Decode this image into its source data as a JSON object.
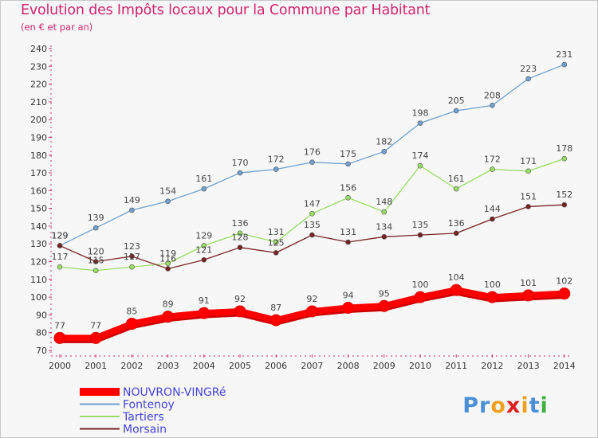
{
  "chart_data": {
    "type": "line",
    "title": "Evolution des Impôts locaux pour la Commune par Habitant",
    "subtitle": "(en € et par an)",
    "xlabel": "",
    "ylabel": "",
    "x": [
      "2000",
      "2001",
      "2002",
      "2003",
      "2004",
      "2005",
      "2006",
      "2007",
      "2008",
      "2009",
      "2010",
      "2011",
      "2012",
      "2013",
      "2014"
    ],
    "ylim": [
      70,
      240
    ],
    "yticks": [
      70,
      80,
      90,
      100,
      110,
      120,
      130,
      140,
      150,
      160,
      170,
      180,
      190,
      200,
      210,
      220,
      230,
      240
    ],
    "grid": false,
    "legend_position": "bottom-left",
    "series": [
      {
        "name": "NOUVRON-VINGRé",
        "color": "#ff0000",
        "values": [
          77,
          77,
          85,
          89,
          91,
          92,
          87,
          92,
          94,
          95,
          100,
          104,
          100,
          101,
          102
        ]
      },
      {
        "name": "Fontenoy",
        "color": "#6fa0d0",
        "values": [
          129,
          139,
          149,
          154,
          161,
          170,
          172,
          176,
          175,
          182,
          198,
          205,
          208,
          223,
          231
        ]
      },
      {
        "name": "Tartiers",
        "color": "#99dd66",
        "values": [
          117,
          115,
          117,
          119,
          129,
          136,
          131,
          147,
          156,
          148,
          174,
          161,
          172,
          171,
          178
        ]
      },
      {
        "name": "Morsain",
        "color": "#772222",
        "values": [
          129,
          120,
          123,
          116,
          121,
          128,
          125,
          135,
          131,
          134,
          135,
          136,
          144,
          151,
          152
        ]
      }
    ]
  },
  "logo": {
    "text": "Proxiti",
    "colors": [
      "#4a90d9",
      "#f0a020",
      "#e02020",
      "#40b040"
    ]
  }
}
